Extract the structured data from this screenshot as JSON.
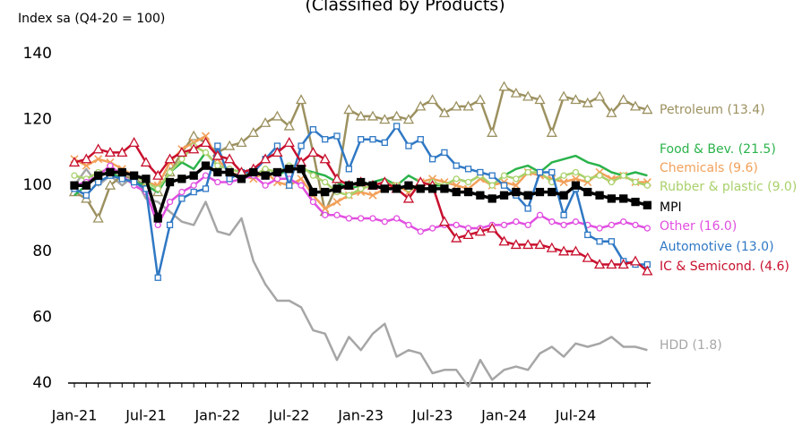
{
  "chart_data": {
    "type": "line",
    "title": "(Classified by Products)",
    "y_axis_label": "Index sa (Q4-20 = 100)",
    "categories": [
      "Jan-21",
      null,
      null,
      null,
      null,
      null,
      "Jul-21",
      null,
      null,
      null,
      null,
      null,
      "Jan-22",
      null,
      null,
      null,
      null,
      null,
      "Jul-22",
      null,
      null,
      null,
      null,
      null,
      "Jan-23",
      null,
      null,
      null,
      null,
      null,
      "Jul-23",
      null,
      null,
      null,
      null,
      null,
      "Jan-24",
      null,
      null,
      null,
      null,
      null,
      "Jul-24",
      null,
      null,
      null,
      null,
      null,
      null
    ],
    "ylim": [
      40,
      140
    ],
    "yticks": [
      40,
      60,
      80,
      100,
      120,
      140
    ],
    "series": [
      {
        "name": "HDD (1.8)",
        "color": "#a6a6a6",
        "marker": "none",
        "values": [
          100,
          105,
          100,
          103,
          100,
          103,
          96,
          95,
          92,
          89,
          88,
          95,
          86,
          85,
          90,
          77,
          70,
          65,
          65,
          63,
          56,
          55,
          47,
          54,
          50,
          55,
          58,
          48,
          50,
          49,
          43,
          44,
          44,
          39,
          47,
          41,
          44,
          45,
          44,
          49,
          51,
          48,
          52,
          51,
          52,
          54,
          51,
          51,
          50
        ]
      },
      {
        "name": "Petroleum (13.4)",
        "color": "#9c9160",
        "marker": "triangle",
        "values": [
          98,
          96,
          90,
          100,
          103,
          102,
          100,
          98,
          104,
          110,
          115,
          113,
          110,
          112,
          113,
          116,
          119,
          121,
          118,
          126,
          110,
          92,
          100,
          123,
          121,
          121,
          120,
          121,
          120,
          124,
          126,
          122,
          124,
          124,
          126,
          116,
          130,
          128,
          127,
          126,
          116,
          127,
          126,
          125,
          127,
          122,
          126,
          124,
          123
        ]
      },
      {
        "name": "Food & Bev. (21.5)",
        "color": "#2bb34b",
        "marker": "none",
        "values": [
          97,
          100,
          103,
          104,
          102,
          101,
          100,
          98,
          104,
          107,
          105,
          110,
          106,
          105,
          104,
          103,
          104,
          103,
          105,
          105,
          104,
          103,
          101,
          99,
          100,
          101,
          102,
          100,
          103,
          101,
          100,
          100,
          102,
          101,
          103,
          100,
          103,
          105,
          106,
          104,
          107,
          108,
          109,
          107,
          106,
          104,
          103,
          104,
          103
        ]
      },
      {
        "name": "Chemicals (9.6)",
        "color": "#f2a15a",
        "marker": "x",
        "values": [
          108,
          106,
          108,
          107,
          105,
          103,
          101,
          100,
          107,
          111,
          113,
          115,
          108,
          104,
          103,
          102,
          104,
          101,
          100,
          102,
          97,
          93,
          95,
          97,
          98,
          97,
          99,
          100,
          98,
          101,
          102,
          101,
          100,
          99,
          102,
          100,
          101,
          100,
          104,
          103,
          102,
          101,
          102,
          101,
          104,
          102,
          103,
          101,
          101
        ]
      },
      {
        "name": "Rubber & plastic (9.0)",
        "color": "#a9d16b",
        "marker": "circle",
        "values": [
          103,
          102,
          104,
          105,
          104,
          103,
          101,
          99,
          104,
          108,
          112,
          110,
          106,
          105,
          104,
          103,
          105,
          104,
          106,
          106,
          103,
          101,
          98,
          97,
          99,
          100,
          101,
          100,
          99,
          100,
          101,
          100,
          102,
          101,
          103,
          100,
          103,
          102,
          104,
          104,
          101,
          103,
          104,
          102,
          103,
          101,
          103,
          101,
          100
        ]
      },
      {
        "name": "Other (16.0)",
        "color": "#e14fe0",
        "marker": "circle",
        "values": [
          100,
          101,
          103,
          106,
          103,
          100,
          98,
          88,
          95,
          98,
          100,
          103,
          101,
          101,
          102,
          103,
          100,
          102,
          102,
          100,
          95,
          91,
          91,
          90,
          90,
          90,
          89,
          90,
          88,
          86,
          87,
          88,
          88,
          87,
          87,
          88,
          88,
          89,
          88,
          91,
          89,
          88,
          89,
          88,
          87,
          88,
          89,
          88,
          87
        ]
      },
      {
        "name": "Automotive (13.0)",
        "color": "#2f78c4",
        "marker": "square",
        "values": [
          99,
          97,
          101,
          103,
          102,
          101,
          99,
          72,
          88,
          96,
          98,
          99,
          112,
          102,
          104,
          104,
          108,
          112,
          100,
          112,
          117,
          114,
          115,
          105,
          114,
          114,
          113,
          118,
          112,
          114,
          108,
          110,
          106,
          105,
          104,
          103,
          100,
          97,
          93,
          104,
          104,
          91,
          99,
          85,
          83,
          83,
          77,
          76,
          76
        ]
      },
      {
        "name": "IC & Semicond. (4.6)",
        "color": "#c8102e",
        "marker": "triangle",
        "values": [
          107,
          108,
          111,
          110,
          110,
          113,
          107,
          103,
          108,
          110,
          111,
          113,
          109,
          108,
          104,
          105,
          108,
          110,
          113,
          107,
          110,
          108,
          102,
          100,
          101,
          100,
          101,
          99,
          96,
          101,
          100,
          89,
          84,
          85,
          86,
          87,
          83,
          82,
          82,
          82,
          81,
          80,
          80,
          78,
          76,
          76,
          76,
          77,
          74
        ]
      },
      {
        "name": "MPI",
        "color": "#000000",
        "marker": "bigsquare",
        "values": [
          100,
          100,
          103,
          104,
          104,
          103,
          102,
          90,
          101,
          102,
          103,
          106,
          104,
          104,
          102,
          104,
          103,
          104,
          105,
          105,
          98,
          98,
          99,
          100,
          101,
          100,
          99,
          99,
          100,
          99,
          99,
          99,
          98,
          98,
          97,
          96,
          97,
          98,
          97,
          98,
          98,
          97,
          100,
          98,
          97,
          96,
          96,
          95,
          94
        ]
      }
    ]
  }
}
